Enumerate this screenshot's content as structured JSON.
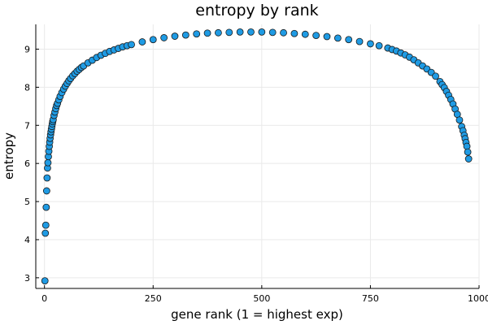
{
  "chart_data": {
    "type": "scatter",
    "title": "entropy by rank",
    "xlabel": "gene rank (1 = highest exp)",
    "ylabel": "entropy",
    "xlim": [
      -20,
      1000
    ],
    "ylim": [
      2.72,
      9.65
    ],
    "xticks": [
      0,
      250,
      500,
      750,
      1000
    ],
    "yticks": [
      3,
      4,
      5,
      6,
      7,
      8,
      9
    ],
    "grid": true,
    "legend": "none",
    "marker_color": "#1f9be4",
    "marker_edge_color": "#1a1a1a",
    "series": [
      {
        "x": [
          1,
          2,
          3,
          4,
          5,
          6,
          7,
          8,
          9,
          10,
          11,
          12,
          13,
          14,
          15,
          16,
          17,
          18,
          19,
          20,
          22,
          24,
          26,
          28,
          30,
          33,
          36,
          40,
          44,
          48,
          52,
          56,
          60,
          65,
          70,
          75,
          80,
          85,
          90,
          100,
          110,
          120,
          130,
          140,
          150,
          160,
          170,
          180,
          190,
          200,
          225,
          250,
          275,
          300,
          325,
          350,
          375,
          400,
          425,
          450,
          475,
          500,
          525,
          550,
          575,
          600,
          625,
          650,
          675,
          700,
          725,
          750,
          770,
          790,
          800,
          810,
          820,
          830,
          840,
          850,
          860,
          870,
          880,
          890,
          900,
          910,
          915,
          920,
          925,
          930,
          935,
          940,
          945,
          950,
          955,
          960,
          963,
          966,
          968,
          970,
          972,
          974,
          976
        ],
        "y": [
          2.92,
          4.17,
          4.38,
          4.85,
          5.28,
          5.62,
          5.88,
          6.02,
          6.18,
          6.32,
          6.45,
          6.56,
          6.66,
          6.75,
          6.83,
          6.9,
          6.97,
          7.04,
          7.1,
          7.15,
          7.26,
          7.35,
          7.44,
          7.52,
          7.58,
          7.67,
          7.76,
          7.86,
          7.95,
          8.03,
          8.1,
          8.17,
          8.23,
          8.3,
          8.36,
          8.42,
          8.47,
          8.52,
          8.56,
          8.64,
          8.71,
          8.78,
          8.84,
          8.89,
          8.94,
          8.98,
          9.02,
          9.06,
          9.09,
          9.12,
          9.19,
          9.25,
          9.3,
          9.34,
          9.37,
          9.4,
          9.42,
          9.43,
          9.44,
          9.45,
          9.45,
          9.45,
          9.44,
          9.43,
          9.41,
          9.39,
          9.36,
          9.33,
          9.29,
          9.25,
          9.2,
          9.14,
          9.09,
          9.03,
          8.99,
          8.95,
          8.9,
          8.85,
          8.79,
          8.72,
          8.64,
          8.56,
          8.48,
          8.39,
          8.29,
          8.15,
          8.07,
          7.99,
          7.89,
          7.79,
          7.68,
          7.56,
          7.43,
          7.29,
          7.14,
          6.97,
          6.86,
          6.74,
          6.65,
          6.55,
          6.45,
          6.3,
          6.12
        ]
      }
    ]
  }
}
